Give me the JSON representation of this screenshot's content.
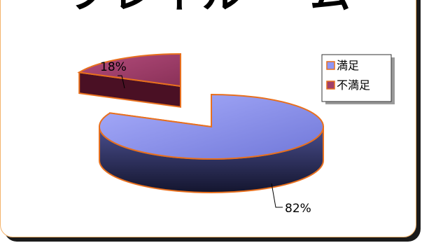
{
  "chart_data": {
    "type": "pie",
    "title": "フレイルー ム",
    "categories": [
      "満足",
      "不満足"
    ],
    "values": [
      82,
      18
    ],
    "data_labels": [
      "82%",
      "18%"
    ],
    "legend": {
      "placement": "right",
      "entries": [
        "満足",
        "不満足"
      ]
    },
    "colors": {
      "series_0_top": "#8f95f4",
      "series_0_side_dark": "#2a2c55",
      "series_1_top": "#a0406a",
      "series_1_side_dark": "#4a1024",
      "outline": "#e8701e"
    },
    "style": "3d-exploded"
  }
}
